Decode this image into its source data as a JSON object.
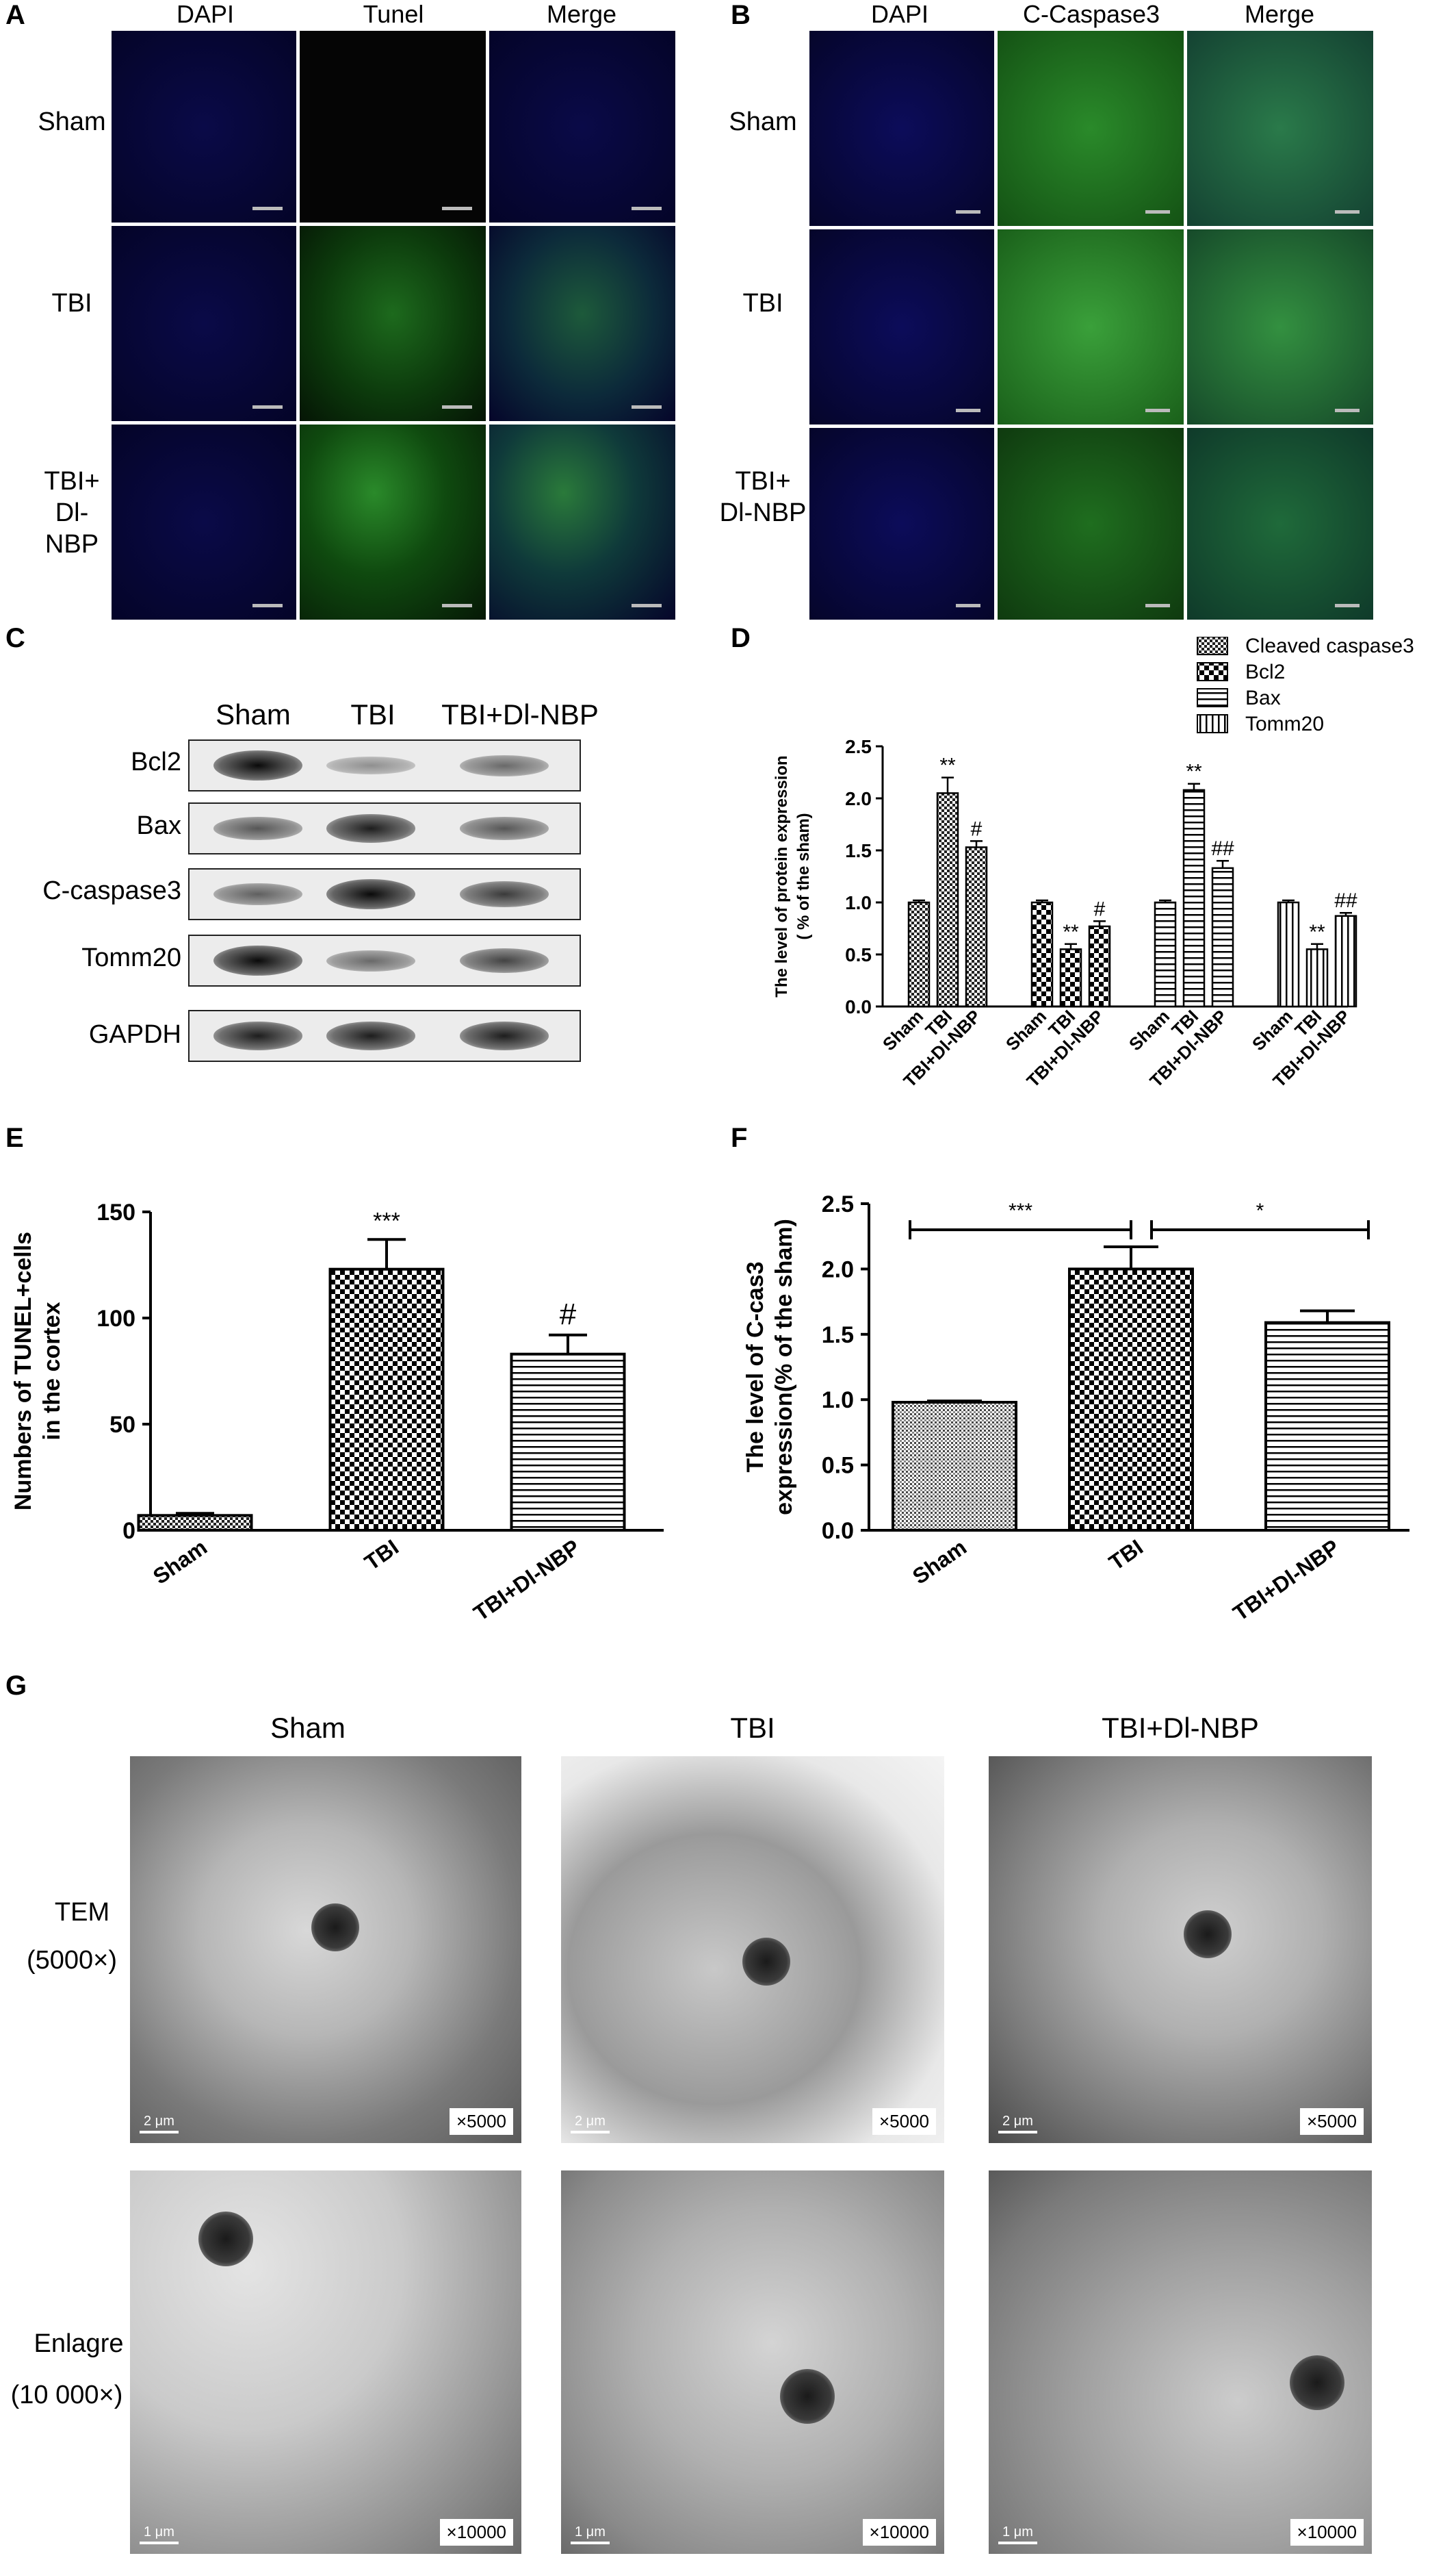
{
  "panels": {
    "A": {
      "letter": "A",
      "columns": [
        "DAPI",
        "Tunel",
        "Merge"
      ],
      "rows": [
        "Sham",
        "TBI",
        "TBI+\nDl-NBP"
      ]
    },
    "B": {
      "letter": "B",
      "columns": [
        "DAPI",
        "C-Caspase3",
        "Merge"
      ],
      "rows": [
        "Sham",
        "TBI",
        "TBI+\nDl-NBP"
      ]
    },
    "C": {
      "letter": "C",
      "lanes": [
        "Sham",
        "TBI",
        "TBI+Dl-NBP"
      ],
      "proteins": [
        "Bcl2",
        "Bax",
        "C-caspase3",
        "Tomm20",
        "GAPDH"
      ],
      "band_intensity": [
        [
          1.0,
          0.3,
          0.5
        ],
        [
          0.6,
          0.9,
          0.6
        ],
        [
          0.55,
          1.0,
          0.75
        ],
        [
          1.0,
          0.5,
          0.7
        ],
        [
          0.9,
          0.9,
          0.9
        ]
      ]
    },
    "D": {
      "letter": "D"
    },
    "E": {
      "letter": "E"
    },
    "F": {
      "letter": "F"
    },
    "G": {
      "letter": "G",
      "columns": [
        "Sham",
        "TBI",
        "TBI+Dl-NBP"
      ],
      "row1_label": "TEM",
      "row1_sub": "(5000×)",
      "row2_label": "Enlagre",
      "row2_sub": "(10 000×)",
      "mag1": "×5000",
      "mag2": "×10000",
      "scale1": "2 μm",
      "scale2": "1 μm"
    }
  },
  "chart_data": [
    {
      "id": "D",
      "type": "bar",
      "ylabel": "The level of protein expression\n( % of the sham)",
      "ylim": [
        0,
        2.5
      ],
      "yticks": [
        "0.0",
        "0.5",
        "1.0",
        "1.5",
        "2.0",
        "2.5"
      ],
      "legend": [
        "Cleaved caspase3",
        "Bcl2",
        "Bax",
        "Tomm20"
      ],
      "groups": [
        {
          "name": "Cleaved caspase3",
          "categories": [
            "Sham",
            "TBI",
            "TBI+Dl-NBP"
          ],
          "values": [
            1.0,
            2.05,
            1.53
          ],
          "errors": [
            0.02,
            0.15,
            0.06
          ],
          "annotations": [
            "",
            "**",
            "#"
          ]
        },
        {
          "name": "Bcl2",
          "categories": [
            "Sham",
            "TBI",
            "TBI+Dl-NBP"
          ],
          "values": [
            1.0,
            0.55,
            0.77
          ],
          "errors": [
            0.02,
            0.05,
            0.05
          ],
          "annotations": [
            "",
            "**",
            "#"
          ]
        },
        {
          "name": "Bax",
          "categories": [
            "Sham",
            "TBI",
            "TBI+Dl-NBP"
          ],
          "values": [
            1.0,
            2.08,
            1.33
          ],
          "errors": [
            0.02,
            0.06,
            0.07
          ],
          "annotations": [
            "",
            "**",
            "##"
          ]
        },
        {
          "name": "Tomm20",
          "categories": [
            "Sham",
            "TBI",
            "TBI+Dl-NBP"
          ],
          "values": [
            1.0,
            0.55,
            0.87
          ],
          "errors": [
            0.02,
            0.05,
            0.03
          ],
          "annotations": [
            "",
            "**",
            "##"
          ]
        }
      ]
    },
    {
      "id": "E",
      "type": "bar",
      "ylabel": "Numbers of TUNEL+cells\nin the cortex",
      "ylim": [
        0,
        150
      ],
      "yticks": [
        "0",
        "50",
        "100",
        "150"
      ],
      "categories": [
        "Sham",
        "TBI",
        "TBI+Dl-NBP"
      ],
      "values": [
        7,
        123,
        83
      ],
      "errors": [
        1,
        14,
        9
      ],
      "annotations": [
        "",
        "***",
        "#"
      ]
    },
    {
      "id": "F",
      "type": "bar",
      "ylabel": "The level of C-cas3\nexpression(% of the sham)",
      "ylim": [
        0,
        2.5
      ],
      "yticks": [
        "0.0",
        "0.5",
        "1.0",
        "1.5",
        "2.0",
        "2.5"
      ],
      "categories": [
        "Sham",
        "TBI",
        "TBI+Dl-NBP"
      ],
      "values": [
        0.98,
        2.0,
        1.59
      ],
      "errors": [
        0.01,
        0.17,
        0.09
      ],
      "brackets": [
        {
          "from": 0,
          "to": 1,
          "label": "***"
        },
        {
          "from": 1,
          "to": 2,
          "label": "*"
        }
      ]
    }
  ],
  "colors": {
    "dapi": "#05052a",
    "green": "#1f8a1f",
    "em_gray": "#9a9a9a"
  }
}
